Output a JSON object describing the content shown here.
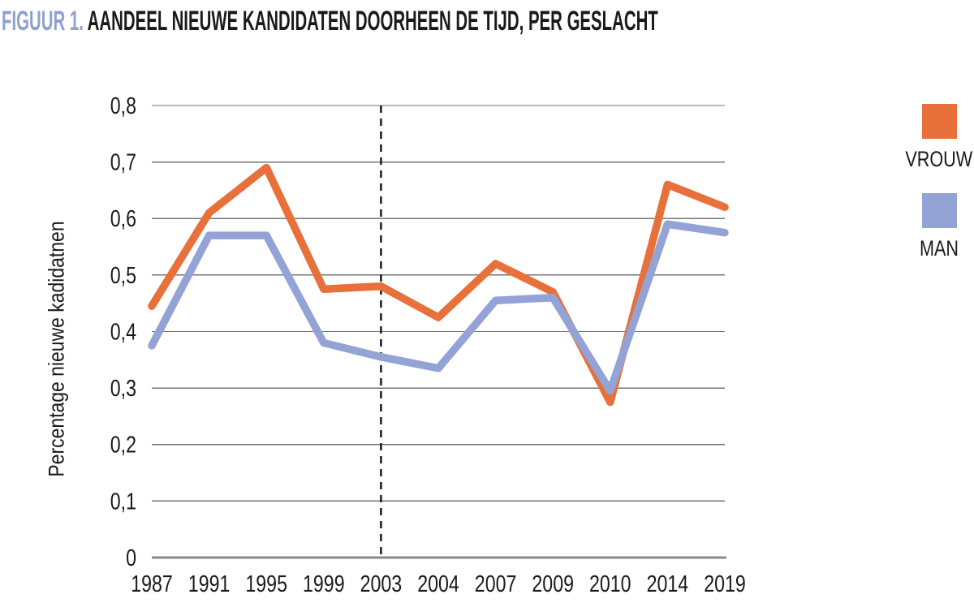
{
  "title": {
    "figure_label": "FIGUUR 1.",
    "text": "AANDEEL NIEUWE KANDIDATEN DOORHEEN DE TIJD, PER GESLACHT"
  },
  "colors": {
    "vrouw": "#E7703B",
    "man": "#94A3D5",
    "figure_label": "#8DA1CF",
    "gridline": "#757575",
    "axis_line": "#8A8A8A",
    "dashed_line": "#1A1A1A"
  },
  "legend": {
    "items": [
      {
        "label": "VROUW",
        "color": "#E7703B"
      },
      {
        "label": "MAN",
        "color": "#94A3D5"
      }
    ]
  },
  "chart_data": {
    "type": "line",
    "title": "AANDEEL NIEUWE KANDIDATEN DOORHEEN DE TIJD, PER GESLACHT",
    "categories": [
      "1987",
      "1991",
      "1995",
      "1999",
      "2003",
      "2004",
      "2007",
      "2009",
      "2010",
      "2014",
      "2019"
    ],
    "series": [
      {
        "name": "VROUW",
        "color": "#E7703B",
        "values": [
          0.445,
          0.61,
          0.69,
          0.475,
          0.48,
          0.425,
          0.52,
          0.47,
          0.275,
          0.66,
          0.62
        ]
      },
      {
        "name": "MAN",
        "color": "#94A3D5",
        "values": [
          0.375,
          0.57,
          0.57,
          0.38,
          0.355,
          0.335,
          0.455,
          0.46,
          0.295,
          0.59,
          0.575
        ]
      }
    ],
    "xlabel": "",
    "ylabel": "Percentage nieuwe kadidatnen",
    "ylim": [
      0,
      0.8
    ],
    "ytick_values": [
      0,
      0.1,
      0.2,
      0.3,
      0.4,
      0.5,
      0.6,
      0.7,
      0.8
    ],
    "ytick_labels": [
      "0",
      "0,1",
      "0,2",
      "0,3",
      "0,4",
      "0,5",
      "0,6",
      "0,7",
      "0,8"
    ],
    "grid": true,
    "legend_position": "right",
    "dashed_vline_at": "2003"
  }
}
